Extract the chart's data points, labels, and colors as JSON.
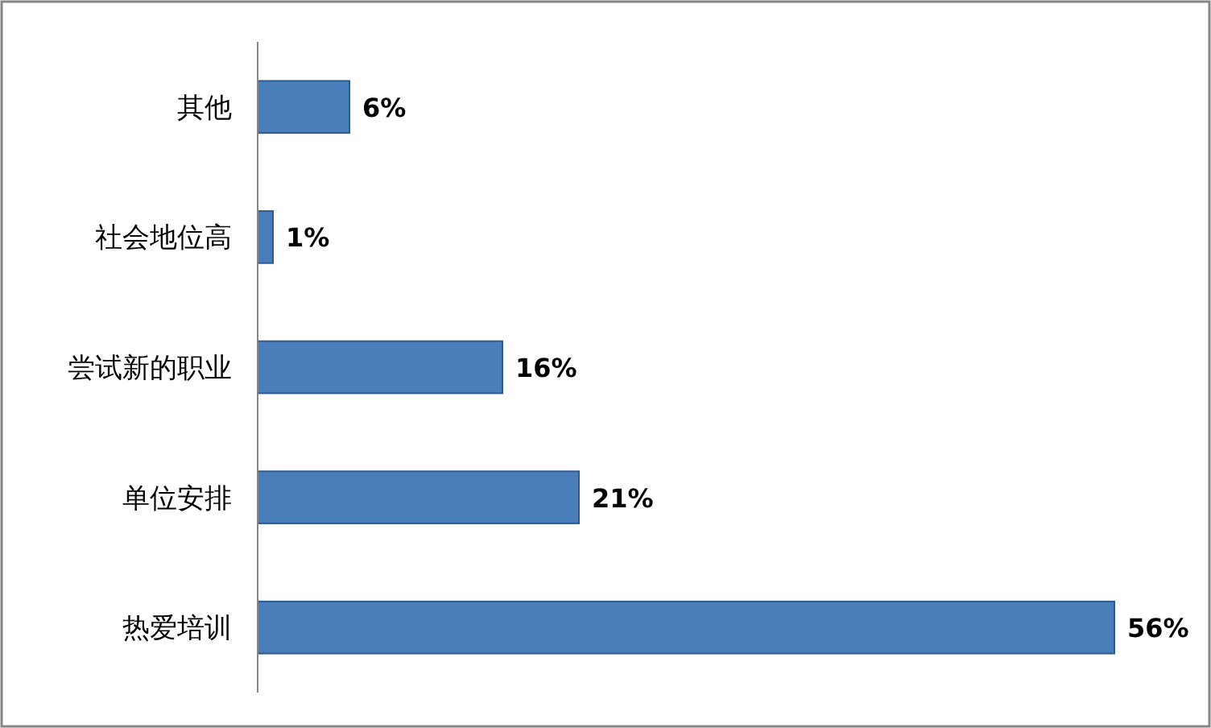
{
  "chart_data": {
    "type": "bar",
    "orientation": "horizontal",
    "categories": [
      "其他",
      "社会地位高",
      "尝试新的职业",
      "单位安排",
      "热爱培训"
    ],
    "values": [
      6,
      1,
      16,
      21,
      56
    ],
    "value_labels": [
      "6%",
      "1%",
      "16%",
      "21%",
      "56%"
    ],
    "color": "#4a7ebb"
  }
}
